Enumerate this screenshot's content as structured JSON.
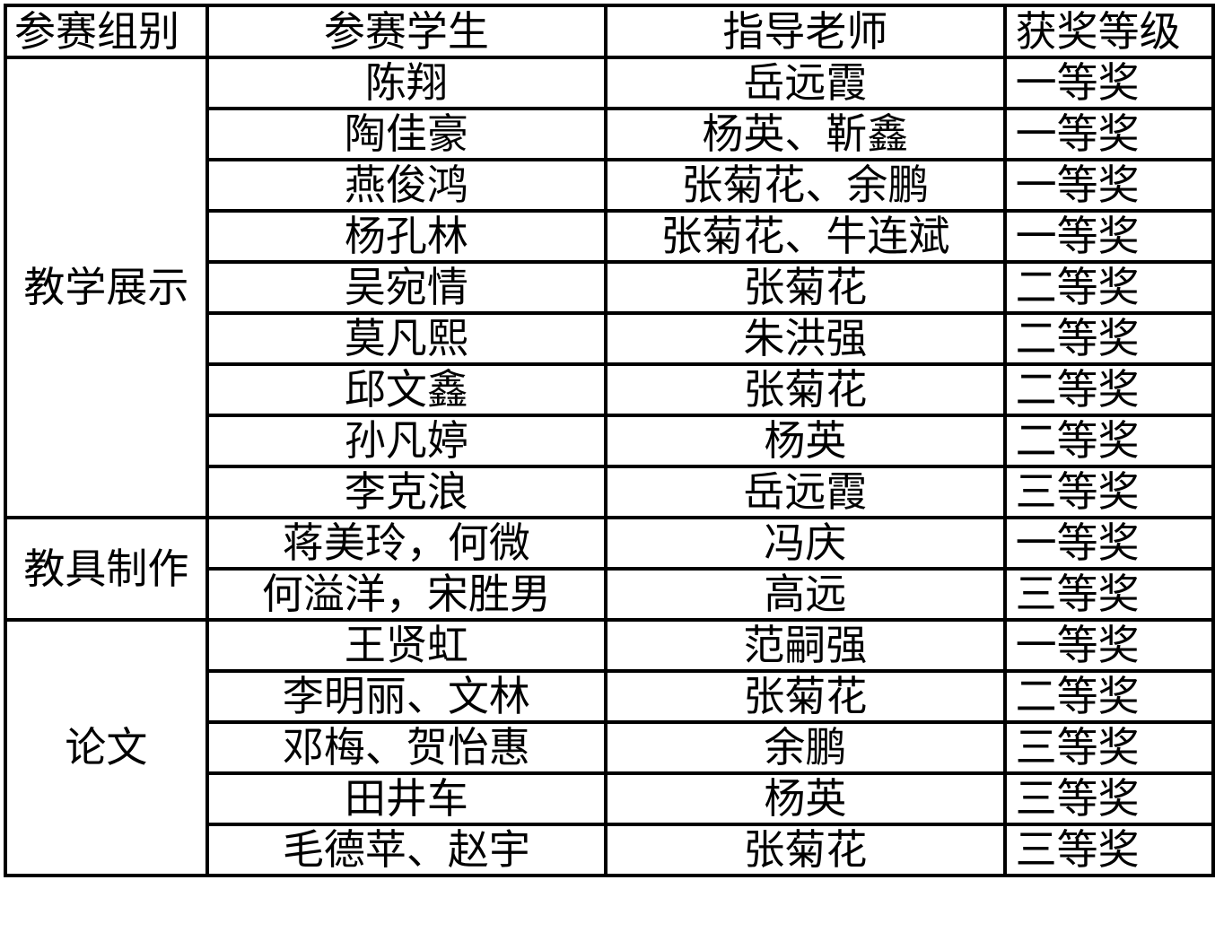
{
  "headers": [
    "参赛组别",
    "参赛学生",
    "指导老师",
    "获奖等级"
  ],
  "groups": [
    {
      "name": "教学展示",
      "rows": [
        {
          "student": "陈翔",
          "teacher": "岳远霞",
          "award": "一等奖"
        },
        {
          "student": "陶佳豪",
          "teacher": "杨英、靳鑫",
          "award": "一等奖"
        },
        {
          "student": "燕俊鸿",
          "teacher": "张菊花、余鹏",
          "award": "一等奖"
        },
        {
          "student": "杨孔林",
          "teacher": "张菊花、牛连斌",
          "award": "一等奖"
        },
        {
          "student": "吴宛情",
          "teacher": "张菊花",
          "award": "二等奖"
        },
        {
          "student": "莫凡熙",
          "teacher": "朱洪强",
          "award": "二等奖"
        },
        {
          "student": "邱文鑫",
          "teacher": "张菊花",
          "award": "二等奖"
        },
        {
          "student": "孙凡婷",
          "teacher": "杨英",
          "award": "二等奖"
        },
        {
          "student": "李克浪",
          "teacher": "岳远霞",
          "award": "三等奖"
        }
      ]
    },
    {
      "name": "教具制作",
      "rows": [
        {
          "student": "蒋美玲，何微",
          "teacher": "冯庆",
          "award": "一等奖"
        },
        {
          "student": "何溢洋，宋胜男",
          "teacher": "高远",
          "award": "三等奖"
        }
      ]
    },
    {
      "name": "论文",
      "rows": [
        {
          "student": "王贤虹",
          "teacher": "范嗣强",
          "award": "一等奖"
        },
        {
          "student": "李明丽、文林",
          "teacher": "张菊花",
          "award": "二等奖"
        },
        {
          "student": "邓梅、贺怡惠",
          "teacher": "余鹏",
          "award": "三等奖"
        },
        {
          "student": "田井车",
          "teacher": "杨英",
          "award": "三等奖"
        },
        {
          "student": "毛德苹、赵宇",
          "teacher": "张菊花",
          "award": "三等奖"
        }
      ]
    }
  ]
}
